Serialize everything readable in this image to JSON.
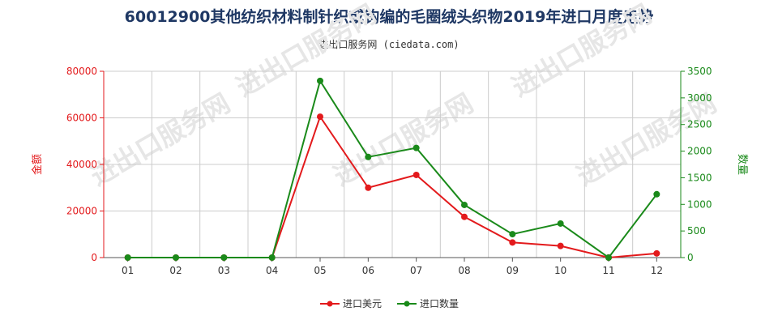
{
  "page": {
    "title": "60012900其他纺织材料制针织或钩编的毛圈绒头织物2019年进口月度走势",
    "subtitle": "进出口服务网 (ciedata.com)",
    "watermark": "进出口服务网"
  },
  "colors": {
    "left_axis": "#e31a1c",
    "right_axis": "#1a8a1a",
    "grid": "#cccccc"
  },
  "chart_data": {
    "type": "line",
    "categories": [
      "01",
      "02",
      "03",
      "04",
      "05",
      "06",
      "07",
      "08",
      "09",
      "10",
      "11",
      "12"
    ],
    "y_left": {
      "label": "金额",
      "ylim": [
        0,
        80000
      ],
      "ticks": [
        "0",
        "20000",
        "40000",
        "60000",
        "80000"
      ]
    },
    "y_right": {
      "label": "数量",
      "ylim": [
        0,
        3500
      ],
      "ticks": [
        "0",
        "500",
        "1000",
        "1500",
        "2000",
        "2500",
        "3000",
        "3500"
      ]
    },
    "series": [
      {
        "name": "进口美元",
        "axis": "left",
        "color": "#e31a1c",
        "values": [
          0,
          0,
          0,
          0,
          60500,
          30000,
          35500,
          17500,
          6500,
          5000,
          0,
          1800
        ]
      },
      {
        "name": "进口数量",
        "axis": "right",
        "color": "#1a8a1a",
        "values": [
          0,
          0,
          0,
          0,
          3320,
          1890,
          2060,
          990,
          440,
          640,
          0,
          1190
        ]
      }
    ],
    "grid": true,
    "legend": "bottom"
  }
}
